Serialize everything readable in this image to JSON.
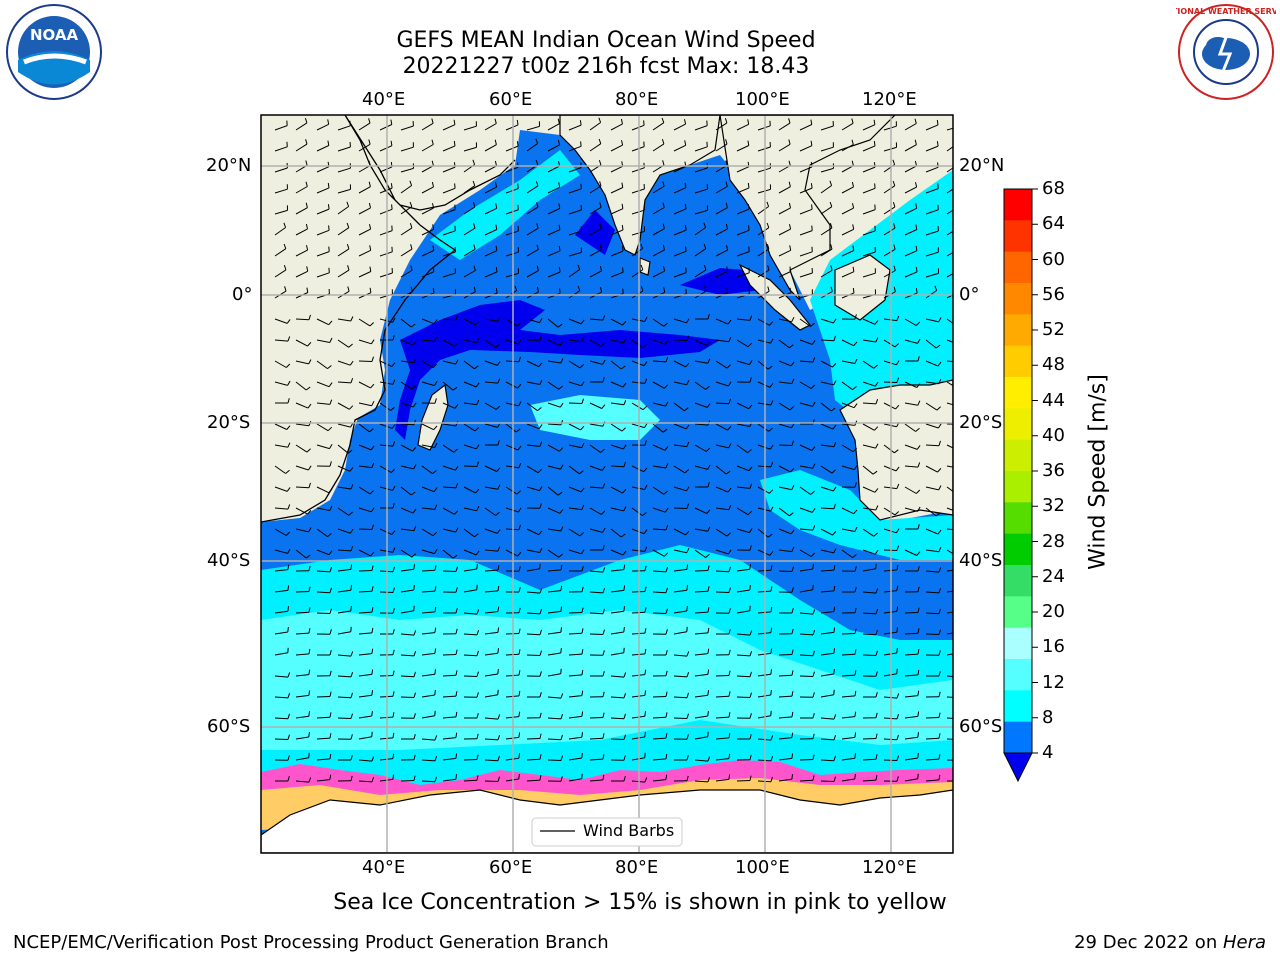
{
  "title": {
    "line1": "GEFS MEAN Indian Ocean Wind Speed",
    "line2": "20221227 t00z 216h fcst   Max: 18.43"
  },
  "logos": {
    "left": "NOAA",
    "right": "NATIONAL WEATHER SERVICE"
  },
  "axes": {
    "lon_top": [
      "40°E",
      "60°E",
      "80°E",
      "100°E",
      "120°E"
    ],
    "lon_bottom": [
      "40°E",
      "60°E",
      "80°E",
      "100°E",
      "120°E"
    ],
    "lat_left": [
      "20°N",
      "0°",
      "20°S",
      "40°S",
      "60°S"
    ],
    "lat_right": [
      "20°N",
      "0°",
      "20°S",
      "40°S",
      "60°S"
    ]
  },
  "legend": {
    "wind_barbs": "Wind Barbs"
  },
  "colorbar": {
    "label": "Wind Speed [m/s]",
    "ticks": [
      "68",
      "64",
      "60",
      "56",
      "52",
      "48",
      "44",
      "40",
      "36",
      "32",
      "28",
      "24",
      "20",
      "16",
      "12",
      "8",
      "4"
    ],
    "colors": [
      "#ff0000",
      "#ff3300",
      "#ff6600",
      "#ff8800",
      "#ffaa00",
      "#ffcc00",
      "#ffee00",
      "#eeee00",
      "#ccee00",
      "#aaee00",
      "#55dd00",
      "#00cc00",
      "#33dd66",
      "#55ff88",
      "#aaffff",
      "#55ffff",
      "#00ffff",
      "#0077ff"
    ],
    "extend_color": "#0000ee"
  },
  "ice_note": "Sea Ice Concentration > 15% is shown in pink to yellow",
  "footer": {
    "left": "NCEP/EMC/Verification Post Processing Product Generation Branch",
    "right_date": "29 Dec 2022 on ",
    "right_host": "Hera"
  }
}
